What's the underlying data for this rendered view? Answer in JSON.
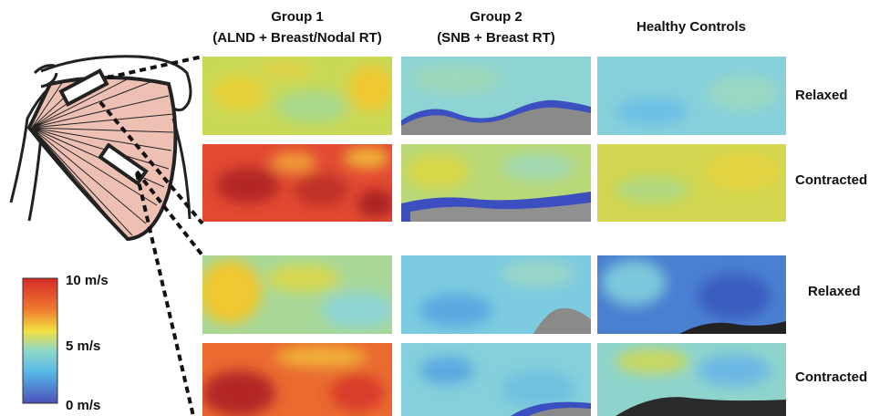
{
  "columns": [
    {
      "title": "Group 1",
      "subtitle": "(ALND + Breast/Nodal RT)"
    },
    {
      "title": "Group 2",
      "subtitle": "(SNB + Breast RT)"
    },
    {
      "title": "Healthy Controls"
    }
  ],
  "rows": [
    "Relaxed",
    "Contracted",
    "Relaxed",
    "Contracted"
  ],
  "colorbar": {
    "labels": [
      "10 m/s",
      "5 m/s",
      "0 m/s"
    ]
  }
}
